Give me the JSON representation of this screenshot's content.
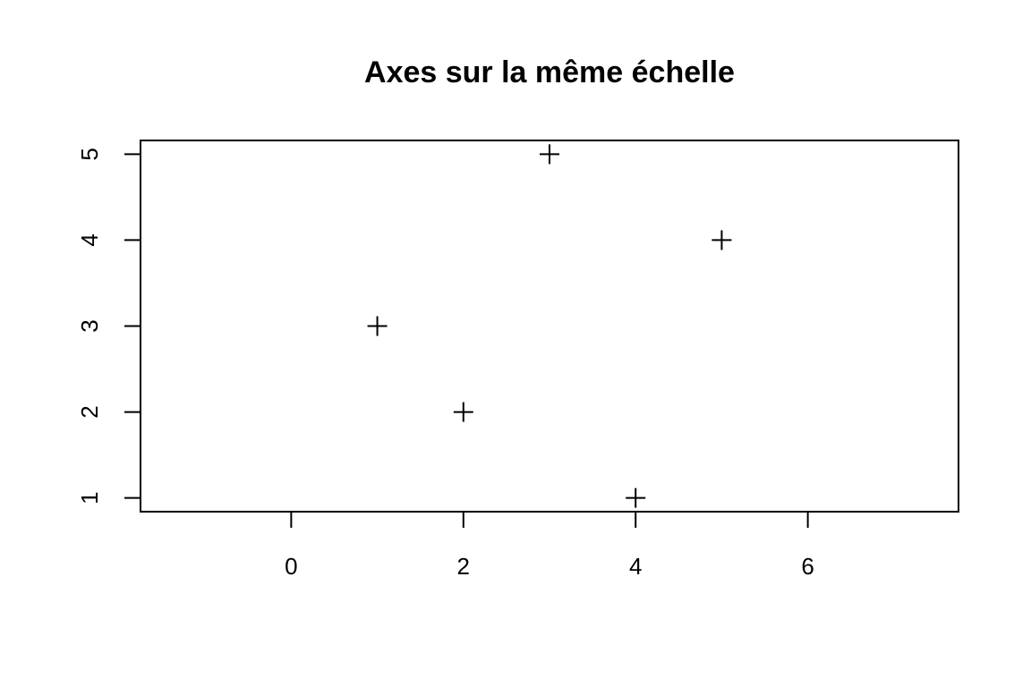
{
  "chart_data": {
    "type": "scatter",
    "title": "Axes sur la même échelle",
    "xlabel": "",
    "ylabel": "",
    "xlim": [
      -1.75,
      7.75
    ],
    "ylim": [
      0.84,
      5.16
    ],
    "x_ticks": [
      0,
      2,
      4,
      6
    ],
    "y_ticks": [
      1,
      2,
      3,
      4,
      5
    ],
    "grid": false,
    "marker": "+",
    "point_color": "#000000",
    "points": [
      {
        "x": 1,
        "y": 3
      },
      {
        "x": 2,
        "y": 2
      },
      {
        "x": 3,
        "y": 5
      },
      {
        "x": 4,
        "y": 1
      },
      {
        "x": 5,
        "y": 4
      }
    ]
  }
}
